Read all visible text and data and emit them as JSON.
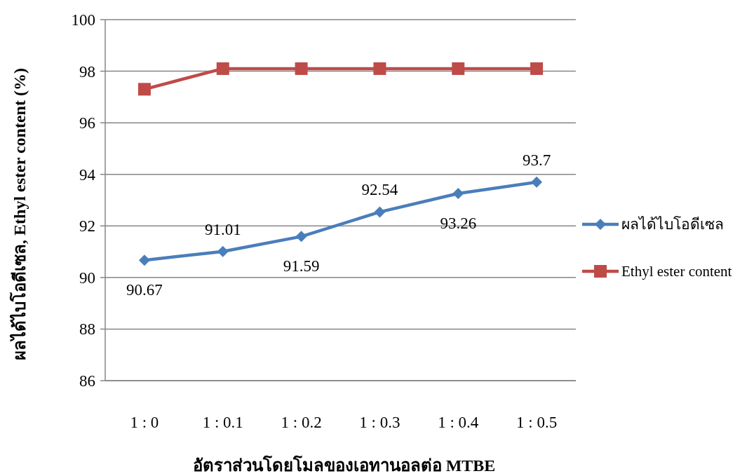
{
  "chart_data": {
    "type": "line",
    "xlabel": "อัตราส่วนโดยโมลของเอทานอลต่อ MTBE",
    "ylabel": "ผลได้ไบโอดีเซล, Ethyl ester content (%)",
    "categories": [
      "1 : 0",
      "1 : 0.1",
      "1 : 0.2",
      "1 : 0.3",
      "1 : 0.4",
      "1 : 0.5"
    ],
    "series": [
      {
        "name": "ผลได้ไบโอดีเซล",
        "color": "#4a7ebb",
        "marker": "diamond",
        "values": [
          90.67,
          91.01,
          91.59,
          92.54,
          93.26,
          93.7
        ],
        "value_labels": [
          "90.67",
          "91.01",
          "91.59",
          "92.54",
          "93.26",
          "93.7"
        ]
      },
      {
        "name": "Ethyl ester content",
        "color": "#be4b48",
        "marker": "square",
        "values": [
          97.3,
          98.1,
          98.1,
          98.1,
          98.1,
          98.1
        ]
      }
    ],
    "ylim": [
      86,
      100
    ],
    "yticks": [
      86,
      88,
      90,
      92,
      94,
      96,
      98,
      100
    ],
    "grid": "y",
    "legend": "right"
  }
}
